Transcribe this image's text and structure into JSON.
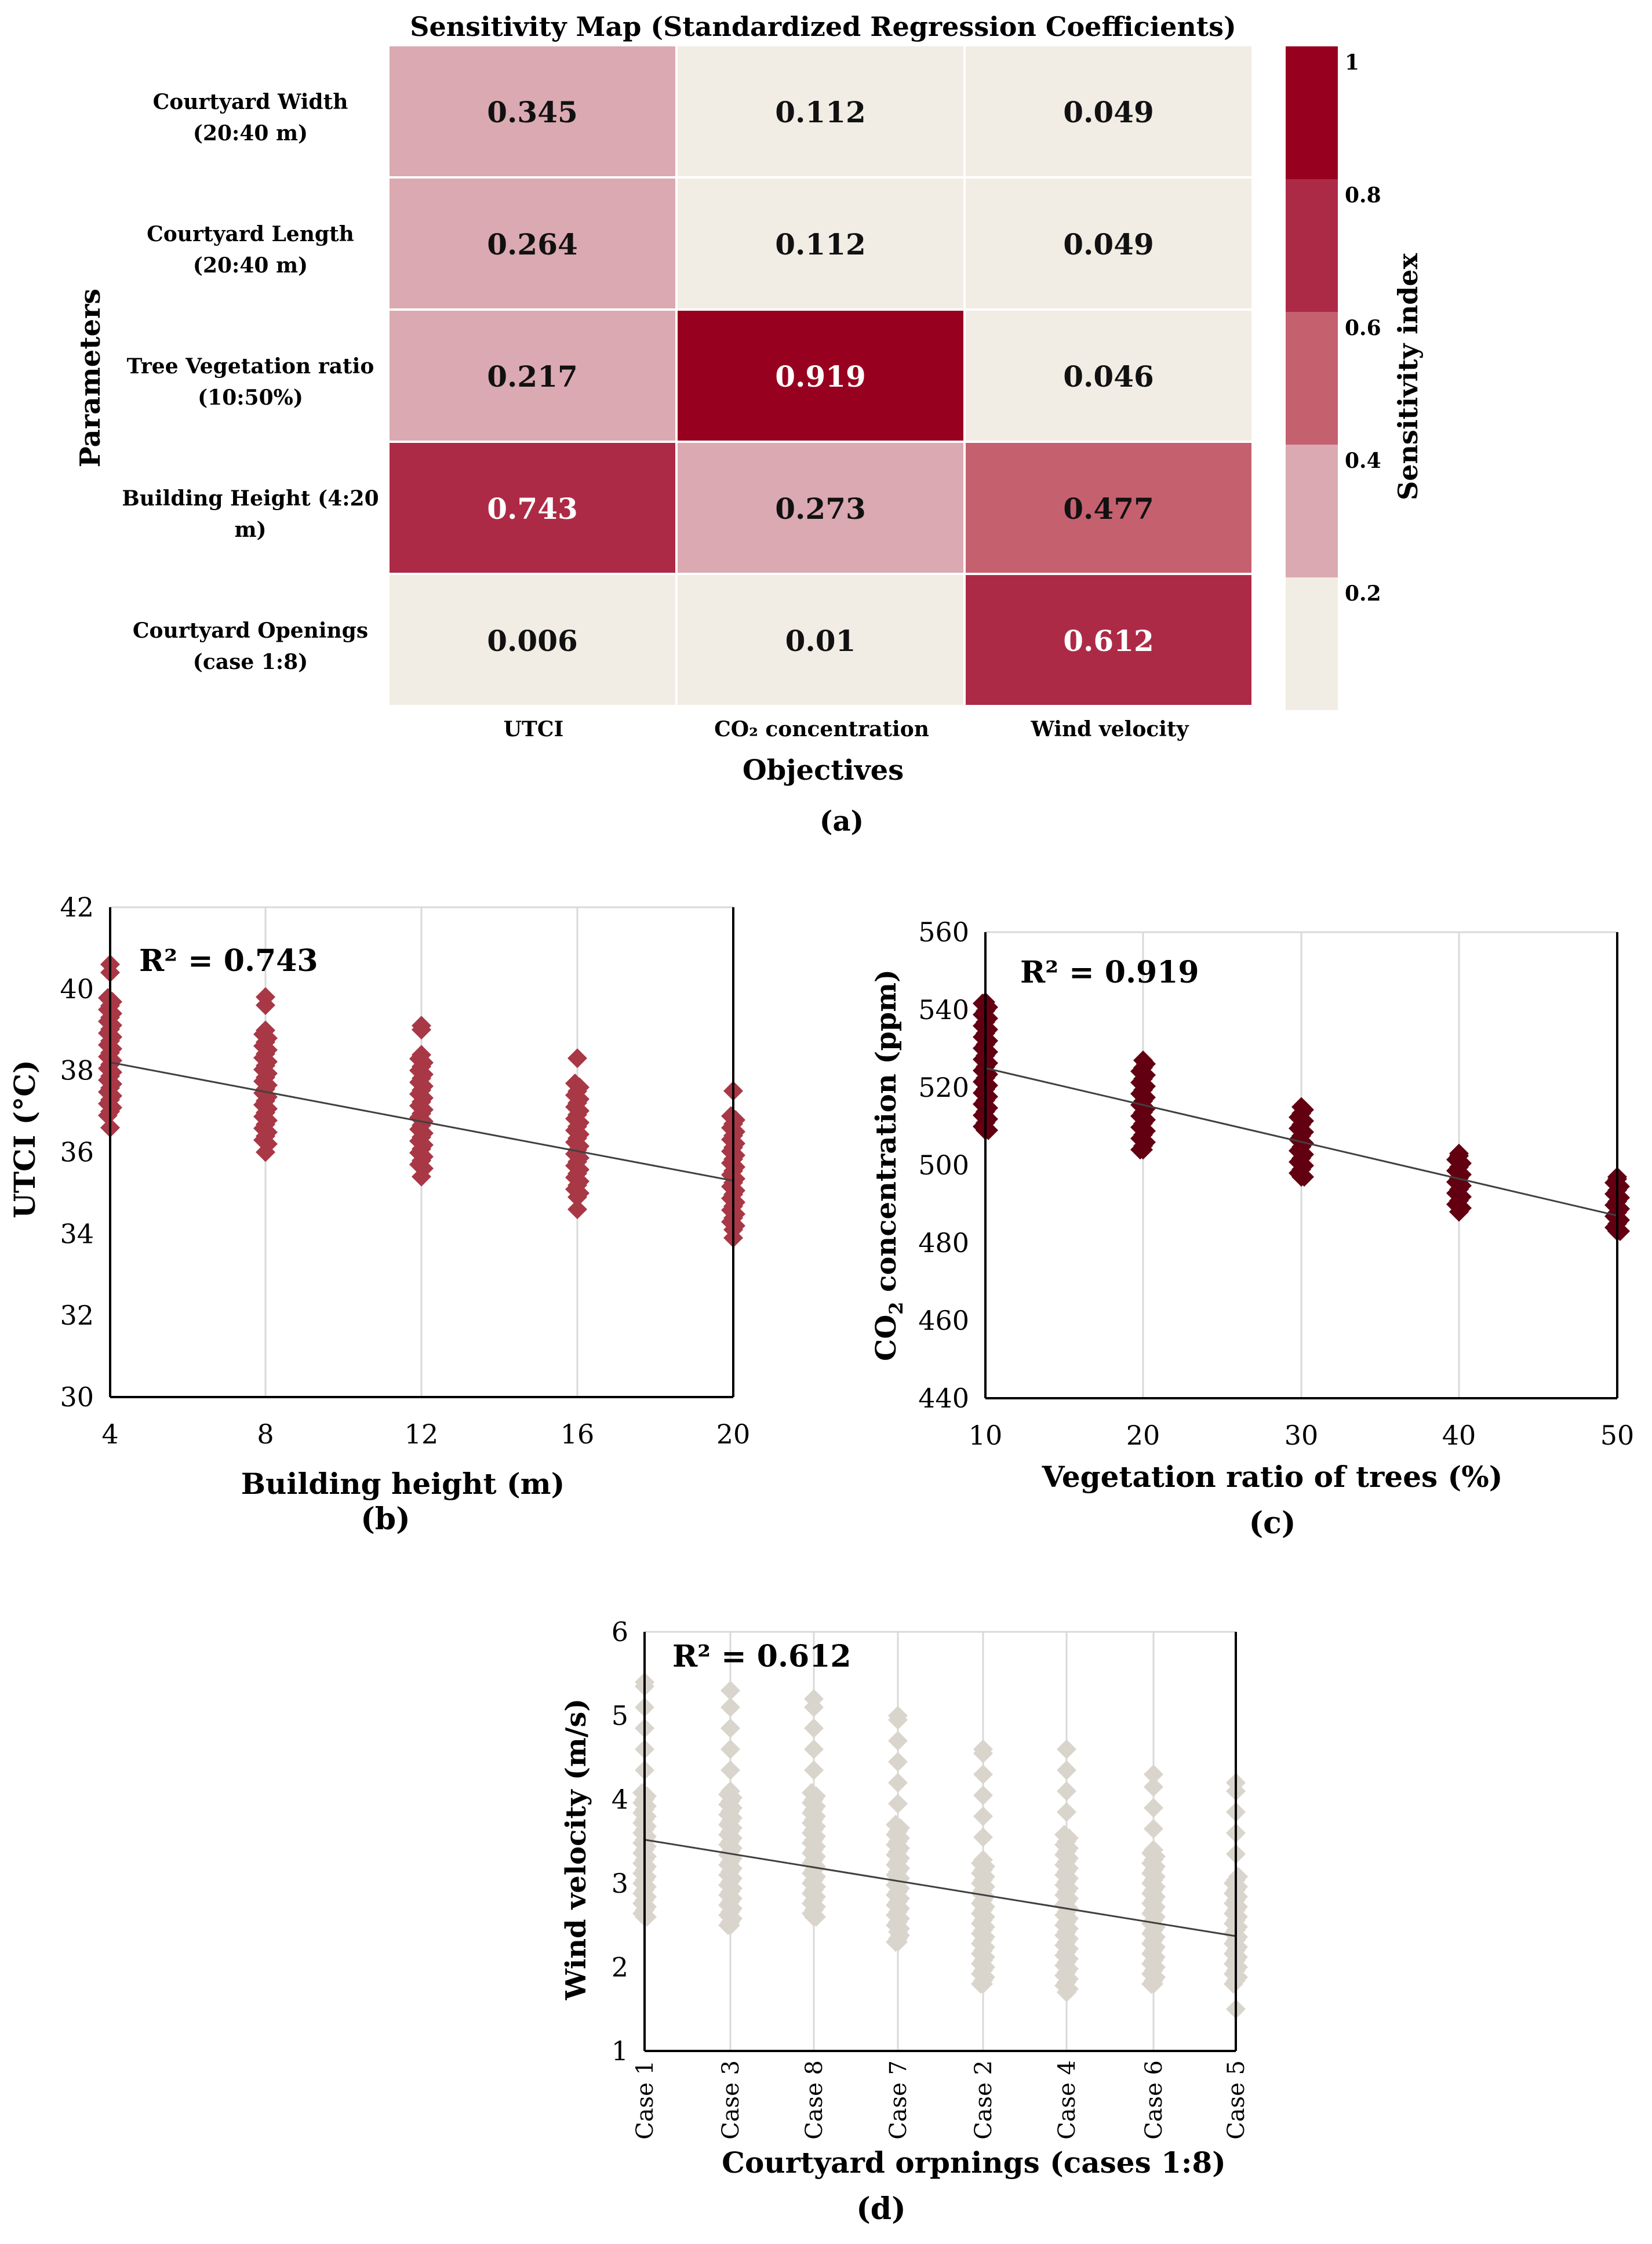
{
  "figure": {
    "panel_labels": {
      "a": "(a)",
      "b": "(b)",
      "c": "(c)",
      "d": "(d)"
    },
    "colors": {
      "bin_0": "#f1ece4",
      "bin_1": "#dba9b1",
      "bin_2": "#c5606f",
      "bin_3": "#ad2a46",
      "bin_4": "#98001f",
      "marker_b": "#a83846",
      "marker_c": "#620012",
      "marker_d": "#d9d5cc",
      "trendline": "#404040",
      "grid": "#d9d9d9"
    }
  },
  "chart_data": [
    {
      "type": "heatmap",
      "title": "Sensitivity Map (Standardized Regression Coefficients)",
      "xlabel": "Objectives",
      "ylabel": "Parameters",
      "columns": [
        "UTCI",
        "CO₂ concentration",
        "Wind velocity"
      ],
      "rows": [
        {
          "label_line1": "Courtyard Width",
          "label_line2": "(20:40 m)"
        },
        {
          "label_line1": "Courtyard Length",
          "label_line2": "(20:40 m)"
        },
        {
          "label_line1": "Tree Vegetation ratio",
          "label_line2": "(10:50%)"
        },
        {
          "label_line1": "Building Height (4:20",
          "label_line2": "m)"
        },
        {
          "label_line1": "Courtyard Openings",
          "label_line2": "(case 1:8)"
        }
      ],
      "values": [
        [
          "0.345",
          "0.112",
          "0.049"
        ],
        [
          "0.264",
          "0.112",
          "0.049"
        ],
        [
          "0.217",
          "0.919",
          "0.046"
        ],
        [
          "0.743",
          "0.273",
          "0.477"
        ],
        [
          "0.006",
          "0.01",
          "0.612"
        ]
      ],
      "colorbar": {
        "label": "Sensitivity index",
        "ticks": [
          "1",
          "0.8",
          "0.6",
          "0.4",
          "0.2"
        ],
        "range": [
          0,
          1
        ]
      }
    },
    {
      "type": "scatter",
      "xlabel": "Building height (m)",
      "ylabel": "UTCI (°C)",
      "annotation": "R² = 0.743",
      "xlim": [
        4,
        20
      ],
      "ylim": [
        30,
        42
      ],
      "xticks": [
        "4",
        "8",
        "12",
        "16",
        "20"
      ],
      "yticks": [
        "30",
        "32",
        "34",
        "36",
        "38",
        "40",
        "42"
      ],
      "x": [
        4,
        8,
        12,
        16,
        20
      ],
      "y_min": [
        36.6,
        36.0,
        35.4,
        34.6,
        33.9
      ],
      "y_max": [
        40.6,
        39.8,
        39.1,
        38.3,
        37.5
      ],
      "y_dense_min": [
        36.9,
        36.2,
        35.6,
        34.9,
        34.1
      ],
      "y_dense_max": [
        39.8,
        39.0,
        38.4,
        37.7,
        36.9
      ],
      "trend": {
        "y_start": 38.2,
        "y_end": 35.3
      }
    },
    {
      "type": "scatter",
      "xlabel": "Vegetation ratio of trees (%)",
      "ylabel_main": "CO",
      "ylabel_sub": "2",
      "ylabel_rest": " concentration  (ppm)",
      "annotation": "R² = 0.919",
      "xlim": [
        10,
        50
      ],
      "ylim": [
        440,
        560
      ],
      "xticks": [
        "10",
        "20",
        "30",
        "40",
        "50"
      ],
      "yticks": [
        "440",
        "460",
        "480",
        "500",
        "520",
        "540",
        "560"
      ],
      "x": [
        10,
        20,
        30,
        40,
        50
      ],
      "y_min": [
        509,
        504,
        497,
        488,
        483
      ],
      "y_max": [
        542,
        527,
        515,
        503,
        497
      ],
      "trend": {
        "y_start": 525,
        "y_end": 487
      }
    },
    {
      "type": "scatter",
      "xlabel": "Courtyard orpnings (cases 1:8)",
      "ylabel": "Wind velocity (m/s)",
      "annotation": "R² = 0.612",
      "ylim": [
        1,
        6
      ],
      "yticks": [
        "1",
        "2",
        "3",
        "4",
        "5",
        "6"
      ],
      "categories": [
        "Case 1",
        "Case 3",
        "Case 8",
        "Case 7",
        "Case 2",
        "Case 4",
        "Case 6",
        "Case 5"
      ],
      "y_min": [
        2.6,
        2.5,
        2.6,
        2.3,
        1.8,
        1.7,
        1.8,
        1.5
      ],
      "y_max": [
        5.4,
        5.3,
        5.2,
        5.0,
        4.6,
        4.6,
        4.3,
        4.2
      ],
      "y_dense_min": [
        2.6,
        2.5,
        2.6,
        2.3,
        1.8,
        1.7,
        1.8,
        1.8
      ],
      "y_dense_max": [
        4.1,
        4.1,
        4.1,
        3.7,
        3.3,
        3.6,
        3.4,
        3.1
      ],
      "trend": {
        "y_start": 3.52,
        "y_end": 2.37
      }
    }
  ]
}
